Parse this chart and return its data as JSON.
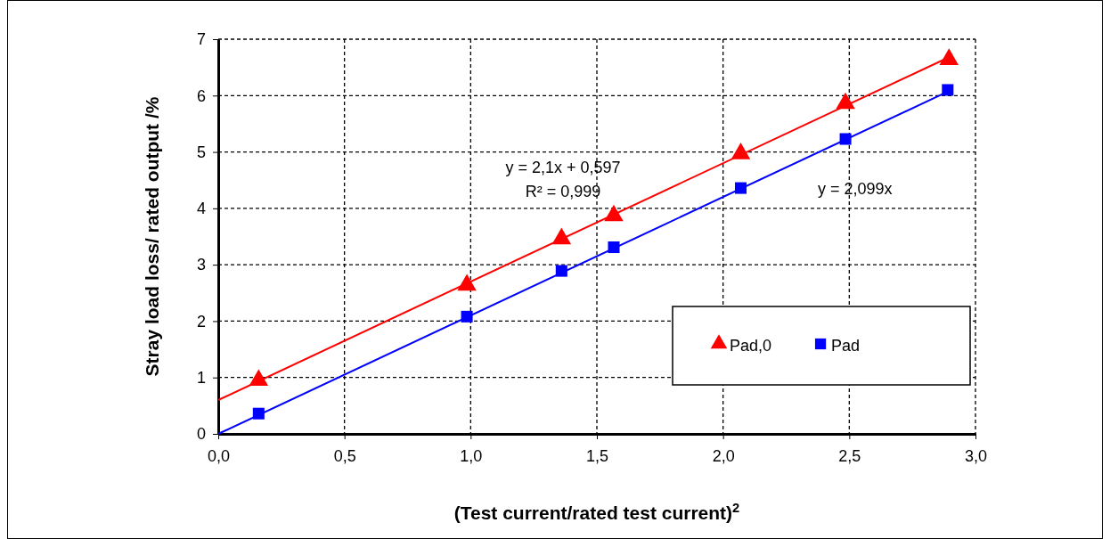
{
  "chart_data": {
    "type": "scatter",
    "xlabel": "(Test current/rated  test current)$^{2}$",
    "ylabel": "Stray load loss/ rated  output /%",
    "xlim": [
      0,
      3
    ],
    "xticks": [
      {
        "value": 0,
        "label": "0,0"
      },
      {
        "value": 0.5,
        "label": "0,5"
      },
      {
        "value": 1,
        "label": "1,0"
      },
      {
        "value": 1.5,
        "label": "1,5"
      },
      {
        "value": 2,
        "label": "2,0"
      },
      {
        "value": 2.5,
        "label": "2,5"
      },
      {
        "value": 3,
        "label": "3,0"
      }
    ],
    "ylim": [
      0,
      7
    ],
    "yticks": [
      0,
      1,
      2,
      3,
      4,
      5,
      6,
      7
    ],
    "grid": true,
    "legend": "bottom right",
    "series": [
      {
        "name": "Pad,0",
        "color": "#ff0000",
        "marker": "triangle",
        "x": [
          0.16,
          0.985,
          1.36,
          1.567,
          2.07,
          2.485,
          2.895
        ],
        "values": [
          0.95,
          2.64,
          3.46,
          3.87,
          4.97,
          5.86,
          6.64
        ]
      },
      {
        "name": "Pad",
        "color": "#0000ff",
        "marker": "square",
        "x": [
          0.16,
          0.985,
          1.36,
          1.567,
          2.07,
          2.485,
          2.89
        ],
        "values": [
          0.36,
          2.08,
          2.89,
          3.31,
          4.36,
          5.23,
          6.1
        ]
      },
      {
        "type": "line",
        "color": "#ff0000",
        "marker": "none",
        "line_style": "solid",
        "x": [
          0,
          2.895
        ],
        "values": [
          0.6,
          6.68
        ]
      },
      {
        "type": "line",
        "color": "#0000ff",
        "marker": "none",
        "line_style": "solid",
        "x": [
          0,
          2.89
        ],
        "values": [
          0,
          6.07
        ]
      }
    ],
    "annotations": [
      "y = 2,1x + 0,597",
      "R² = 0,999",
      "y = 2,099x"
    ]
  }
}
